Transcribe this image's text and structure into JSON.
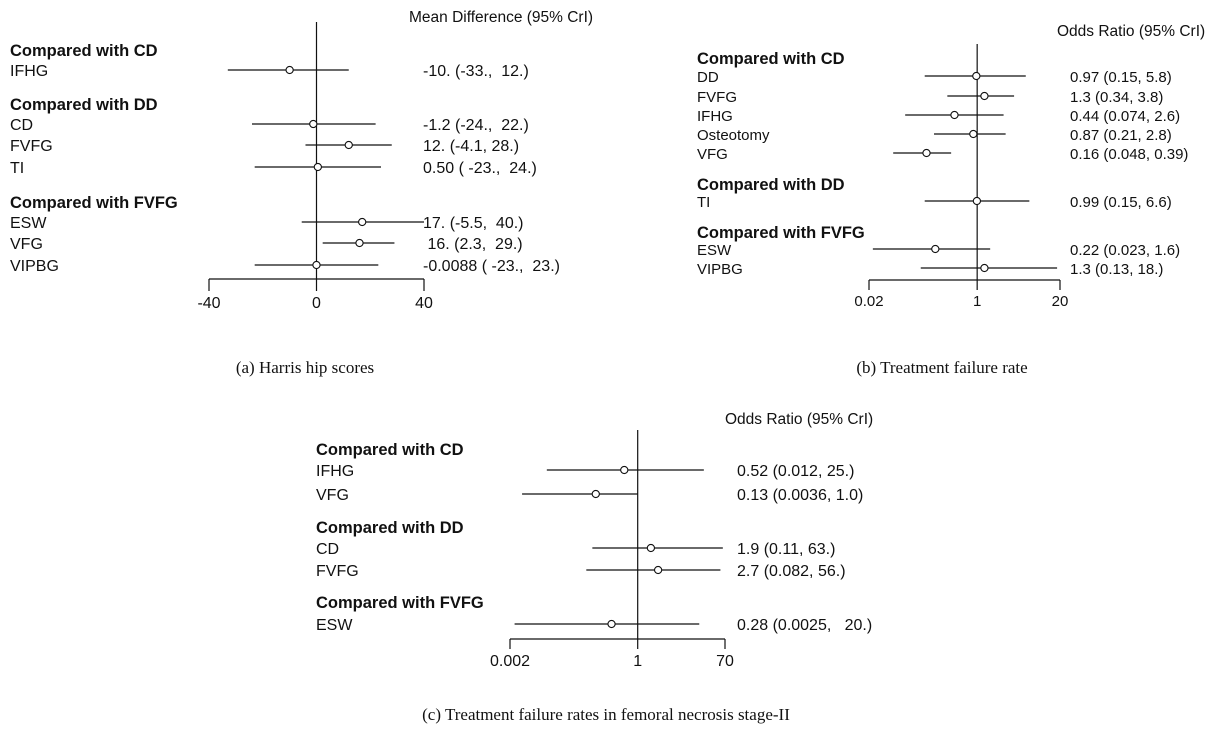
{
  "chart_data": [
    {
      "type": "forest",
      "axis_title": "Mean Difference (95% CrI)",
      "caption": "(a)  Harris hip scores",
      "scale": "linear",
      "xlim": [
        -40,
        40
      ],
      "ticks": [
        {
          "value": -40,
          "label": "-40"
        },
        {
          "value": 0,
          "label": "0"
        },
        {
          "value": 40,
          "label": "40"
        }
      ],
      "groups": [
        {
          "header": "Compared with CD",
          "rows": [
            {
              "label": "IFHG",
              "est": -10,
              "lo": -33,
              "hi": 12,
              "text": "-10. (-33.,  12.)"
            }
          ]
        },
        {
          "header": "Compared with DD",
          "rows": [
            {
              "label": "CD",
              "est": -1.2,
              "lo": -24,
              "hi": 22,
              "text": "-1.2 (-24.,  22.)"
            },
            {
              "label": "FVFG",
              "est": 12,
              "lo": -4.1,
              "hi": 28,
              "text": "12. (-4.1, 28.)"
            },
            {
              "label": "TI",
              "est": 0.5,
              "lo": -23,
              "hi": 24,
              "text": "0.50 ( -23.,  24.)"
            }
          ]
        },
        {
          "header": "Compared with FVFG",
          "rows": [
            {
              "label": "ESW",
              "est": 17,
              "lo": -5.5,
              "hi": 40,
              "text": "17. (-5.5,  40.)"
            },
            {
              "label": "VFG",
              "est": 16,
              "lo": 2.3,
              "hi": 29,
              "text": " 16. (2.3,  29.)"
            },
            {
              "label": "VIPBG",
              "est": -0.0088,
              "lo": -23,
              "hi": 23,
              "text": "-0.0088 ( -23.,  23.)"
            }
          ]
        }
      ]
    },
    {
      "type": "forest",
      "axis_title": "Odds Ratio (95% CrI)",
      "caption": "(b)  Treatment failure rate",
      "scale": "log",
      "xlim": [
        0.02,
        20
      ],
      "ticks": [
        {
          "value": 0.02,
          "label": "0.02"
        },
        {
          "value": 1,
          "label": "1"
        },
        {
          "value": 20,
          "label": "20"
        }
      ],
      "groups": [
        {
          "header": "Compared with CD",
          "rows": [
            {
              "label": "DD",
              "est": 0.97,
              "lo": 0.15,
              "hi": 5.8,
              "text": "0.97 (0.15, 5.8)"
            },
            {
              "label": "FVFG",
              "est": 1.3,
              "lo": 0.34,
              "hi": 3.8,
              "text": "1.3 (0.34, 3.8)"
            },
            {
              "label": "IFHG",
              "est": 0.44,
              "lo": 0.074,
              "hi": 2.6,
              "text": "0.44 (0.074, 2.6)"
            },
            {
              "label": "Osteotomy",
              "est": 0.87,
              "lo": 0.21,
              "hi": 2.8,
              "text": "0.87 (0.21, 2.8)"
            },
            {
              "label": "VFG",
              "est": 0.16,
              "lo": 0.048,
              "hi": 0.39,
              "text": "0.16 (0.048, 0.39)"
            }
          ]
        },
        {
          "header": "Compared with DD",
          "rows": [
            {
              "label": "TI",
              "est": 0.99,
              "lo": 0.15,
              "hi": 6.6,
              "text": "0.99 (0.15, 6.6)"
            }
          ]
        },
        {
          "header": "Compared with FVFG",
          "rows": [
            {
              "label": "ESW",
              "est": 0.22,
              "lo": 0.023,
              "hi": 1.6,
              "text": "0.22 (0.023, 1.6)"
            },
            {
              "label": "VIPBG",
              "est": 1.3,
              "lo": 0.13,
              "hi": 18,
              "text": "1.3 (0.13, 18.)"
            }
          ]
        }
      ]
    },
    {
      "type": "forest",
      "axis_title": "Odds Ratio (95% CrI)",
      "caption": "(c)  Treatment failure rates in femoral necrosis stage-II",
      "scale": "log",
      "xlim": [
        0.002,
        70
      ],
      "ticks": [
        {
          "value": 0.002,
          "label": "0.002"
        },
        {
          "value": 1,
          "label": "1"
        },
        {
          "value": 70,
          "label": "70"
        }
      ],
      "groups": [
        {
          "header": "Compared with CD",
          "rows": [
            {
              "label": "IFHG",
              "est": 0.52,
              "lo": 0.012,
              "hi": 25,
              "text": "0.52 (0.012, 25.)"
            },
            {
              "label": "VFG",
              "est": 0.13,
              "lo": 0.0036,
              "hi": 1.0,
              "text": "0.13 (0.0036, 1.0)"
            }
          ]
        },
        {
          "header": "Compared with DD",
          "rows": [
            {
              "label": "CD",
              "est": 1.9,
              "lo": 0.11,
              "hi": 63,
              "text": "1.9 (0.11, 63.)"
            },
            {
              "label": "FVFG",
              "est": 2.7,
              "lo": 0.082,
              "hi": 56,
              "text": "2.7 (0.082, 56.)"
            }
          ]
        },
        {
          "header": "Compared with FVFG",
          "rows": [
            {
              "label": "ESW",
              "est": 0.28,
              "lo": 0.0025,
              "hi": 20,
              "text": "0.28 (0.0025,   20.)"
            }
          ]
        }
      ]
    }
  ]
}
